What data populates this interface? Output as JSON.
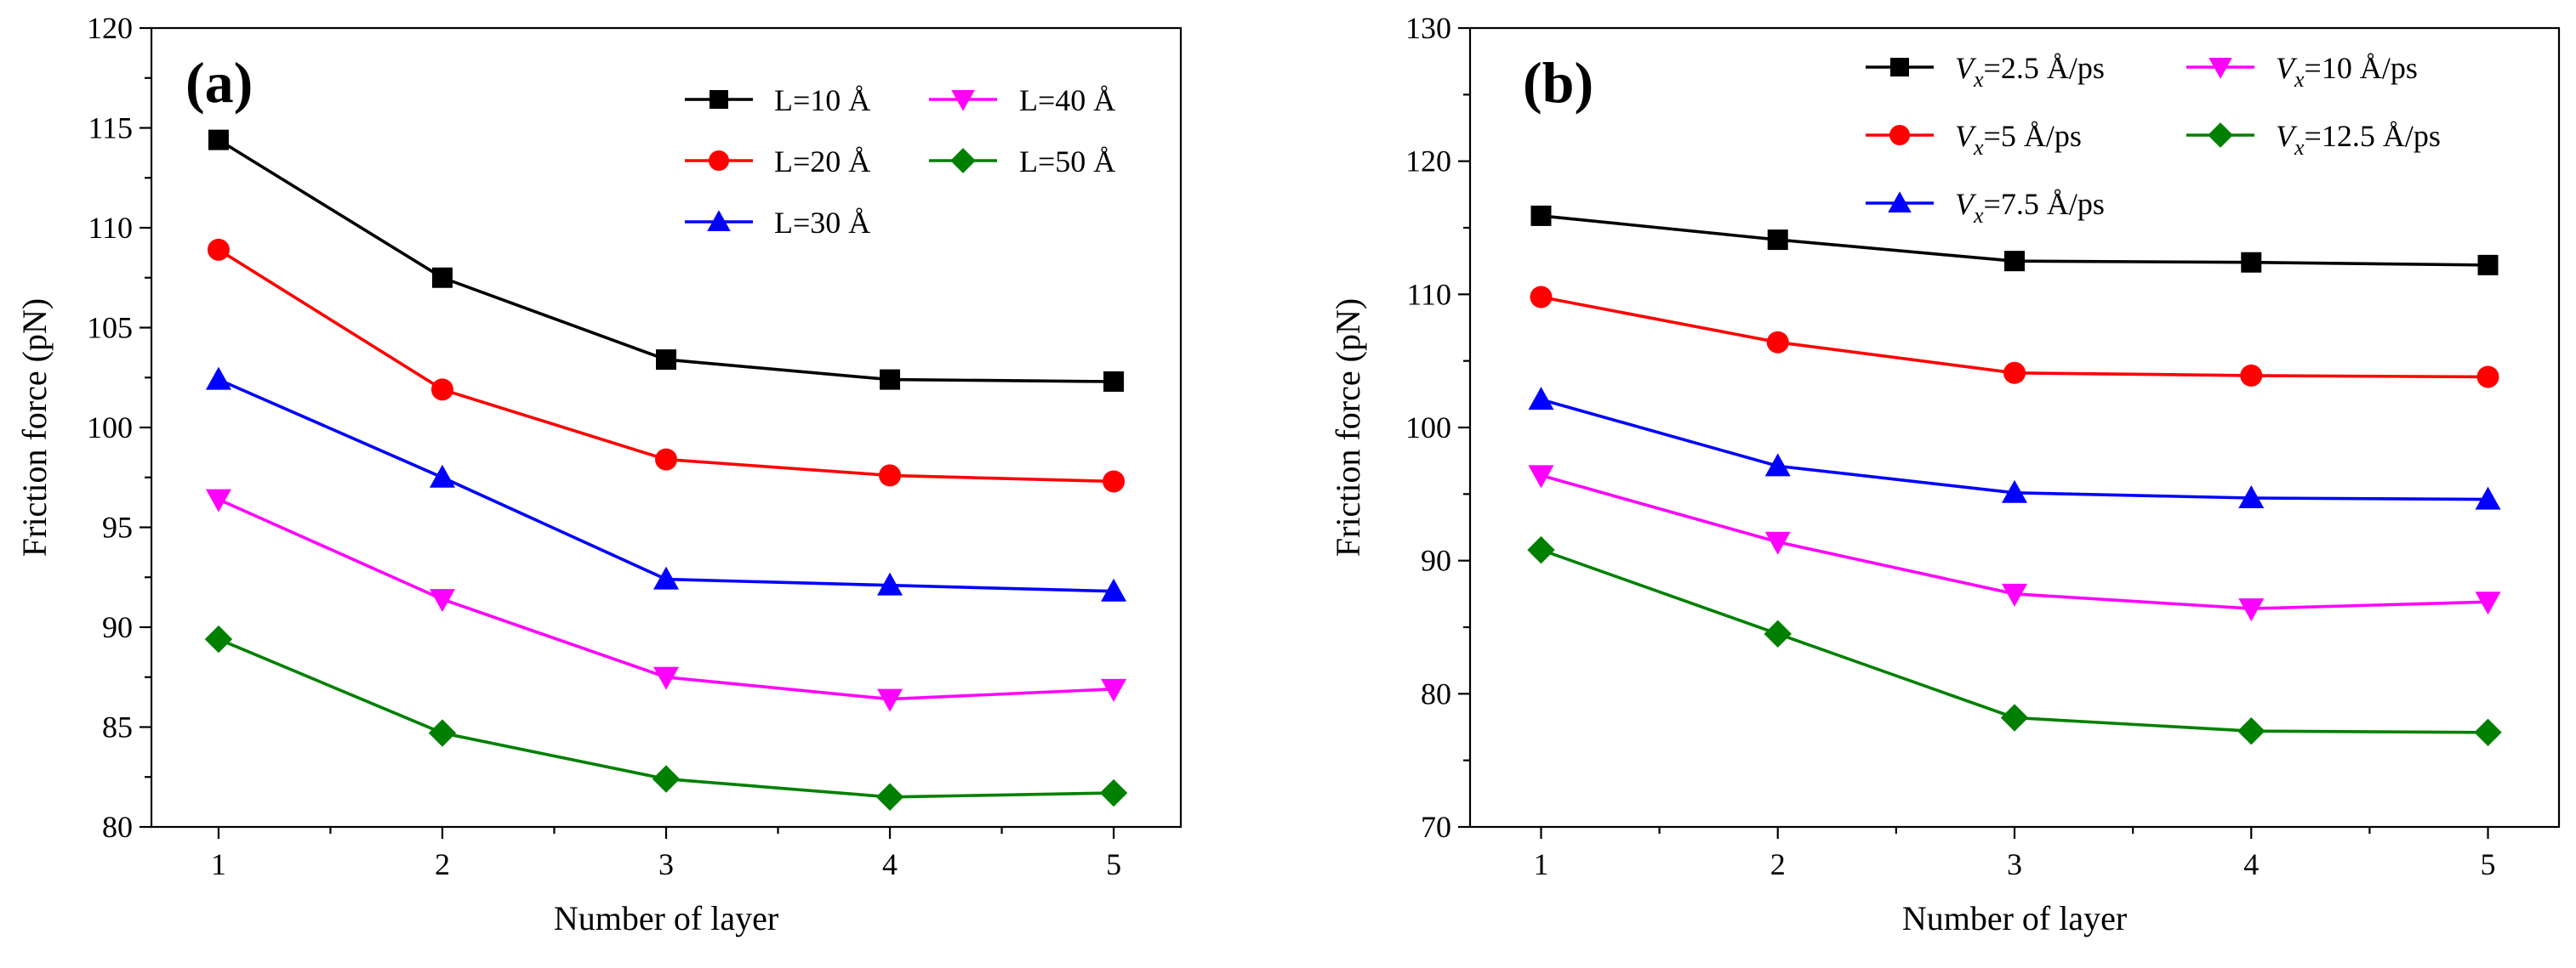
{
  "chart_data": [
    {
      "type": "line",
      "panel_label": "(a)",
      "xlabel": "Number of layer",
      "ylabel": "Friction force (pN)",
      "x": [
        1,
        2,
        3,
        4,
        5
      ],
      "xticks": [
        "1",
        "2",
        "3",
        "4",
        "5"
      ],
      "xlim": [
        0.7,
        5.3
      ],
      "ylim": [
        80,
        120
      ],
      "yticks": [
        "80",
        "85",
        "90",
        "95",
        "100",
        "105",
        "110",
        "115",
        "120"
      ],
      "legend_position": "top-right",
      "series": [
        {
          "name": "L=10 Å",
          "color": "#000000",
          "marker": "square",
          "values": [
            114.4,
            107.5,
            103.4,
            102.4,
            102.3
          ]
        },
        {
          "name": "L=20 Å",
          "color": "#ff0000",
          "marker": "circle",
          "values": [
            108.9,
            101.9,
            98.4,
            97.6,
            97.3
          ]
        },
        {
          "name": "L=30 Å",
          "color": "#0000ff",
          "marker": "triangle-up",
          "values": [
            102.4,
            97.5,
            92.4,
            92.1,
            91.8
          ]
        },
        {
          "name": "L=40 Å",
          "color": "#ff00ff",
          "marker": "triangle-down",
          "values": [
            96.4,
            91.4,
            87.5,
            86.4,
            86.9
          ]
        },
        {
          "name": "L=50 Å",
          "color": "#008000",
          "marker": "diamond",
          "values": [
            89.4,
            84.7,
            82.4,
            81.5,
            81.7
          ]
        }
      ]
    },
    {
      "type": "line",
      "panel_label": "(b)",
      "xlabel": "Number of layer",
      "ylabel": "Friction force (pN)",
      "x": [
        1,
        2,
        3,
        4,
        5
      ],
      "xticks": [
        "1",
        "2",
        "3",
        "4",
        "5"
      ],
      "xlim": [
        0.7,
        5.3
      ],
      "ylim": [
        70,
        130
      ],
      "yticks": [
        "70",
        "80",
        "90",
        "100",
        "110",
        "120",
        "130"
      ],
      "legend_position": "top-right",
      "series": [
        {
          "name": "Vx=2.5 Å/ps",
          "label_symbol": "V",
          "label_subscript": "x",
          "label_rest": "=2.5 Å/ps",
          "color": "#000000",
          "marker": "square",
          "values": [
            115.9,
            114.1,
            112.5,
            112.4,
            112.2
          ]
        },
        {
          "name": "Vx=5 Å/ps",
          "label_symbol": "V",
          "label_subscript": "x",
          "label_rest": "=5 Å/ps",
          "color": "#ff0000",
          "marker": "circle",
          "values": [
            109.8,
            106.4,
            104.1,
            103.9,
            103.8
          ]
        },
        {
          "name": "Vx=7.5 Å/ps",
          "label_symbol": "V",
          "label_subscript": "x",
          "label_rest": "=7.5 Å/ps",
          "color": "#0000ff",
          "marker": "triangle-up",
          "values": [
            102.1,
            97.1,
            95.1,
            94.7,
            94.6
          ]
        },
        {
          "name": "Vx=10 Å/ps",
          "label_symbol": "V",
          "label_subscript": "x",
          "label_rest": "=10 Å/ps",
          "color": "#ff00ff",
          "marker": "triangle-down",
          "values": [
            96.4,
            91.4,
            87.5,
            86.4,
            86.9
          ]
        },
        {
          "name": "Vx=12.5 Å/ps",
          "label_symbol": "V",
          "label_subscript": "x",
          "label_rest": "=12.5 Å/ps",
          "color": "#008000",
          "marker": "diamond",
          "values": [
            90.8,
            84.5,
            78.2,
            77.2,
            77.1
          ]
        }
      ]
    }
  ]
}
